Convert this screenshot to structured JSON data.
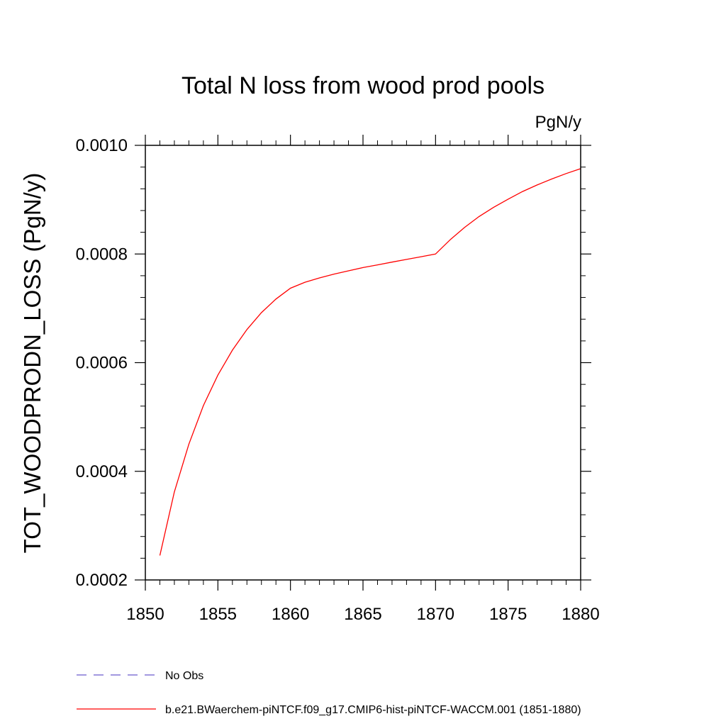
{
  "chart_data": {
    "type": "line",
    "title": "Total N loss from wood prod pools",
    "units": "PgN/y",
    "ylabel": "TOT_WOODPRODN_LOSS  (PgN/y)",
    "xlabel": "",
    "xlim": [
      1850,
      1880
    ],
    "ylim": [
      0.0002,
      0.001
    ],
    "x_major_ticks": [
      1850,
      1855,
      1860,
      1865,
      1870,
      1875,
      1880
    ],
    "x_tick_labels": [
      "1850",
      "1855",
      "1860",
      "1865",
      "1870",
      "1875",
      "1880"
    ],
    "y_major_ticks": [
      0.0002,
      0.0004,
      0.0006,
      0.0008,
      0.001
    ],
    "y_tick_labels": [
      "0.0002",
      "0.0004",
      "0.0006",
      "0.0008",
      "0.0010"
    ],
    "grid": false,
    "legend_position": "bottom",
    "series": [
      {
        "name": "No Obs",
        "color": "#6a5acd",
        "dash": "dashed",
        "x": [],
        "values": []
      },
      {
        "name": "b.e21.BWaerchem-piNTCF.f09_g17.CMIP6-hist-piNTCF-WACCM.001 (1851-1880)",
        "color": "#ff0000",
        "dash": "solid",
        "x": [
          1851,
          1852,
          1853,
          1854,
          1855,
          1856,
          1857,
          1858,
          1859,
          1860,
          1861,
          1862,
          1863,
          1864,
          1865,
          1866,
          1867,
          1868,
          1869,
          1870,
          1871,
          1872,
          1873,
          1874,
          1875,
          1876,
          1877,
          1878,
          1879,
          1880
        ],
        "values": [
          0.000245,
          0.000362,
          0.00045,
          0.000521,
          0.000577,
          0.000623,
          0.000661,
          0.000692,
          0.000717,
          0.000737,
          0.000748,
          0.000756,
          0.000763,
          0.000769,
          0.000775,
          0.00078,
          0.000785,
          0.00079,
          0.000795,
          0.0008,
          0.000826,
          0.000849,
          0.000869,
          0.000886,
          0.000901,
          0.000915,
          0.000927,
          0.000938,
          0.000948,
          0.000957
        ]
      }
    ]
  }
}
